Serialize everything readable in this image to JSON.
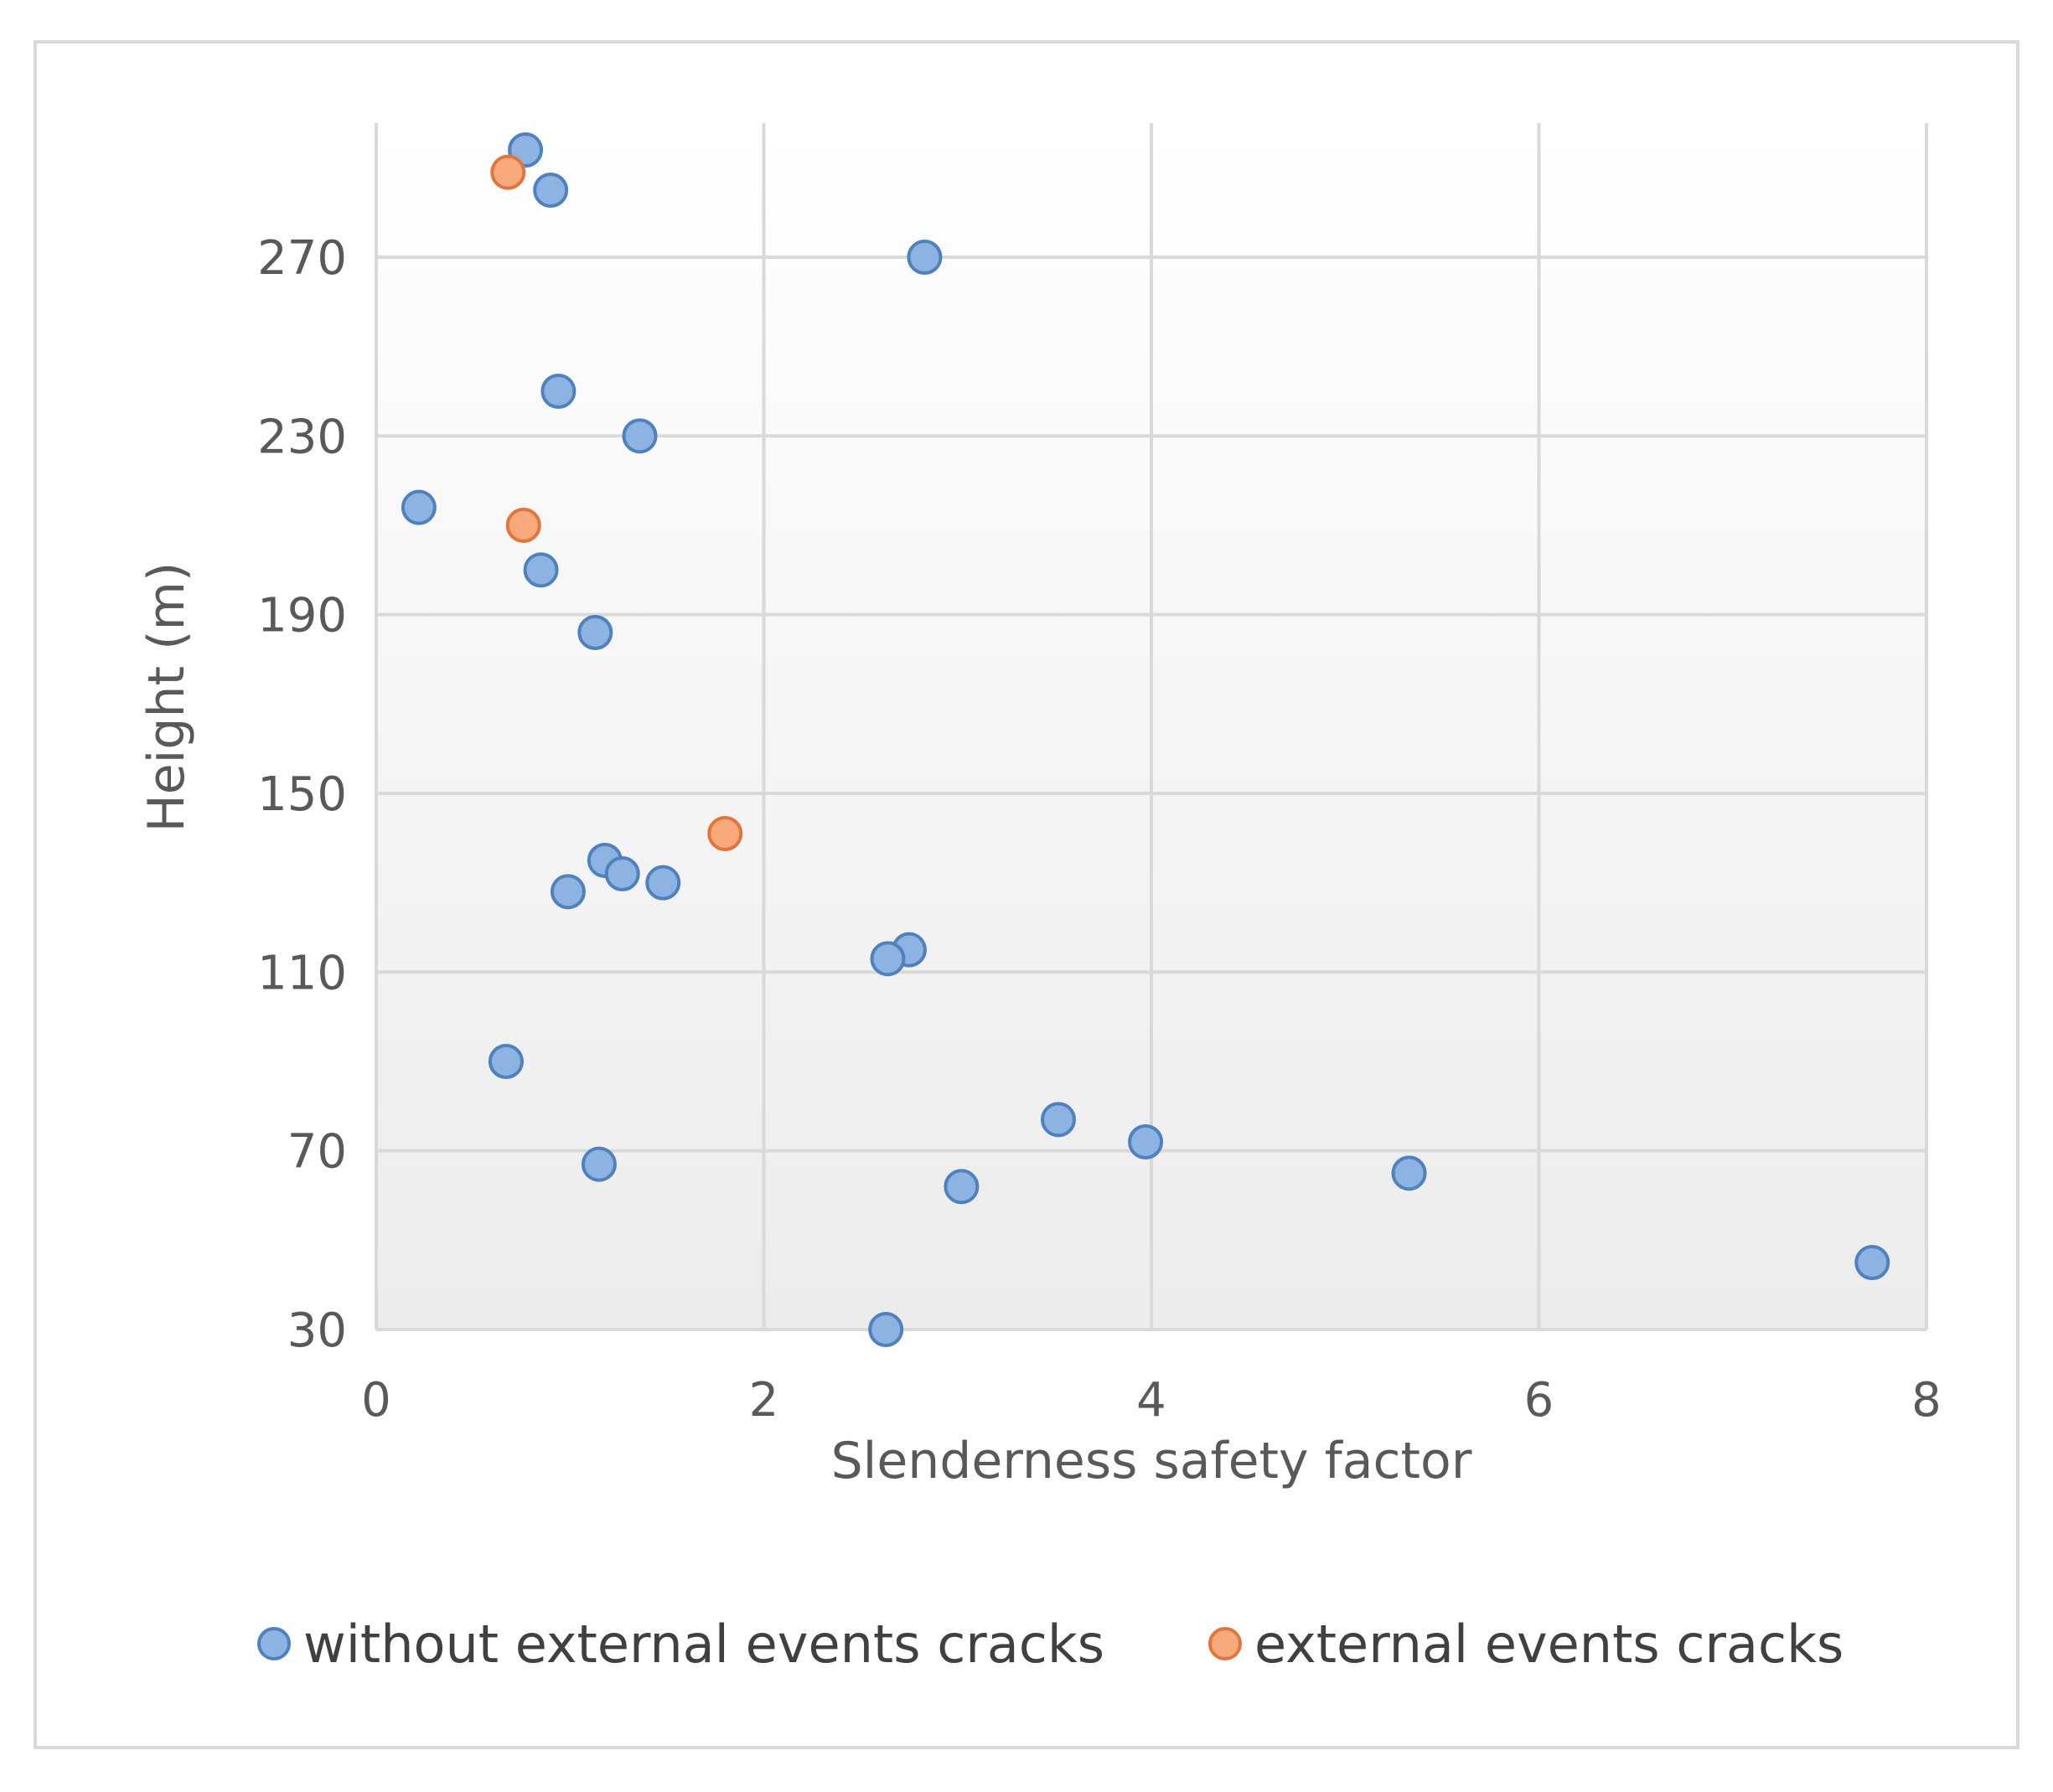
{
  "chart_data": {
    "type": "scatter",
    "title": "",
    "xlabel": "Slenderness safety factor",
    "ylabel": "Height (m)",
    "xlim": [
      0,
      8
    ],
    "ylim": [
      30,
      300
    ],
    "x_ticks": [
      "0",
      "2",
      "4",
      "6",
      "8"
    ],
    "y_ticks": [
      "30",
      "70",
      "110",
      "150",
      "190",
      "230",
      "270"
    ],
    "grid": true,
    "legend_position": "bottom",
    "series": [
      {
        "name": "without external events cracks",
        "color": "#8db3e2",
        "edge_color": "#4f81bd",
        "points": [
          {
            "x": 0.77,
            "y": 294
          },
          {
            "x": 0.9,
            "y": 285
          },
          {
            "x": 2.83,
            "y": 270
          },
          {
            "x": 0.94,
            "y": 240
          },
          {
            "x": 1.36,
            "y": 230
          },
          {
            "x": 0.22,
            "y": 214
          },
          {
            "x": 0.85,
            "y": 200
          },
          {
            "x": 1.13,
            "y": 186
          },
          {
            "x": 1.18,
            "y": 135
          },
          {
            "x": 1.27,
            "y": 132
          },
          {
            "x": 1.48,
            "y": 130
          },
          {
            "x": 0.99,
            "y": 128
          },
          {
            "x": 2.75,
            "y": 115
          },
          {
            "x": 2.64,
            "y": 113
          },
          {
            "x": 0.67,
            "y": 90
          },
          {
            "x": 3.52,
            "y": 77
          },
          {
            "x": 3.97,
            "y": 72
          },
          {
            "x": 1.15,
            "y": 67
          },
          {
            "x": 5.33,
            "y": 65
          },
          {
            "x": 3.02,
            "y": 62
          },
          {
            "x": 7.72,
            "y": 45
          },
          {
            "x": 2.63,
            "y": 30
          }
        ]
      },
      {
        "name": "external events cracks",
        "color": "#f8a97c",
        "edge_color": "#e0763c",
        "points": [
          {
            "x": 0.68,
            "y": 289
          },
          {
            "x": 0.76,
            "y": 210
          },
          {
            "x": 1.8,
            "y": 141
          }
        ]
      }
    ]
  }
}
